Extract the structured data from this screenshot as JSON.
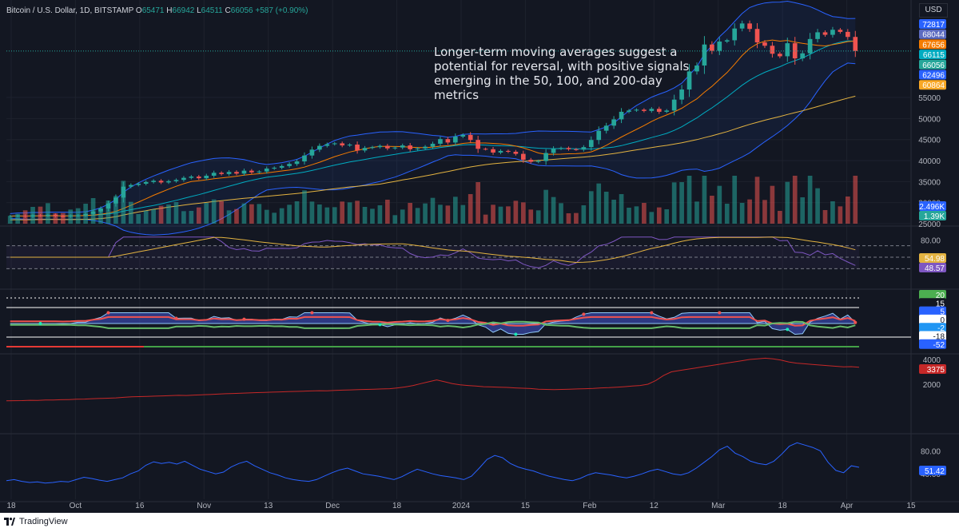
{
  "header": {
    "symbol": "Bitcoin / U.S. Dollar, 1D, BITSTAMP",
    "o_label": "O",
    "o_value": "65471",
    "h_label": "H",
    "h_value": "66942",
    "l_label": "L",
    "l_value": "64511",
    "c_label": "C",
    "c_value": "66056",
    "change": "+587 (+0.90%)",
    "currency": "USD"
  },
  "annotation": "Longer-term moving averages suggest a potential for reversal, with positive signals emerging in the 50, 100, and 200-day metrics",
  "footer": {
    "brand": "TradingView"
  },
  "colors": {
    "background": "#131722",
    "up": "#26a69a",
    "down": "#ef5350",
    "bollinger": "#2962ff",
    "ma_gold": "#e3b341",
    "rsi": "#7e57c2",
    "pane_line": "#2a2e39"
  },
  "chart_data": [
    {
      "type": "candlestick",
      "pane": "price",
      "x_ticks": [
        "18",
        "Oct",
        "16",
        "Nov",
        "13",
        "Dec",
        "18",
        "2024",
        "15",
        "Feb",
        "12",
        "Mar",
        "18",
        "Apr",
        "15"
      ],
      "y_ticks": [
        25000,
        30000,
        35000,
        40000,
        45000,
        50000,
        55000
      ],
      "ylim": [
        25000,
        74000
      ],
      "close_series": [
        26800,
        26900,
        26700,
        27000,
        26900,
        27100,
        26800,
        26700,
        26900,
        27000,
        27300,
        27900,
        28600,
        29800,
        31200,
        33800,
        34200,
        34500,
        34900,
        35200,
        34800,
        35100,
        35400,
        35900,
        36200,
        35800,
        36400,
        37100,
        36800,
        37300,
        36900,
        37600,
        37200,
        37400,
        38100,
        38300,
        38700,
        39200,
        39800,
        41200,
        42600,
        43500,
        43900,
        44100,
        43600,
        43800,
        42400,
        43000,
        43200,
        43500,
        42900,
        43100,
        43600,
        42700,
        42900,
        43300,
        44000,
        45100,
        44300,
        45700,
        46100,
        44900,
        42800,
        42700,
        41900,
        42300,
        42100,
        41600,
        40200,
        39700,
        39900,
        41800,
        42800,
        43000,
        42700,
        42600,
        43200,
        44900,
        47100,
        48300,
        49800,
        51600,
        51900,
        52100,
        51800,
        52300,
        51600,
        51900,
        54500,
        56900,
        61200,
        62600,
        67600,
        66100,
        68300,
        68600,
        71400,
        72600,
        71300,
        68100,
        67300,
        65400,
        64800,
        67900,
        64300,
        65500,
        68900,
        70500,
        69900,
        71100,
        70600,
        69400,
        66056
      ],
      "labels": [
        "72817",
        "68044",
        "67656",
        "66115",
        "66056",
        "62496",
        "60864"
      ],
      "label_colors": [
        "#2962ff",
        "#5c6bc0",
        "#f57c00",
        "#00acc1",
        "#26a69a",
        "#2962ff",
        "#f9a825"
      ]
    },
    {
      "type": "bar",
      "pane": "volume",
      "labels": [
        "2.496K",
        "1.39K"
      ],
      "label_colors": [
        "#2962ff",
        "#26a69a"
      ]
    },
    {
      "type": "line",
      "pane": "rsi",
      "y_ticks": [
        80.0
      ],
      "labels": [
        "54.98",
        "48.57"
      ],
      "label_colors": [
        "#e3b341",
        "#7e57c2"
      ]
    },
    {
      "type": "area",
      "pane": "oscillator",
      "labels": [
        "20",
        "15",
        "5",
        "0",
        "-2",
        "-18",
        "-52"
      ],
      "label_colors": [
        "#4caf50",
        "#131722",
        "#2962ff",
        "#ffffff",
        "#2196f3",
        "#ffffff",
        "#2962ff"
      ]
    },
    {
      "type": "line",
      "pane": "red-line",
      "y_ticks": [
        4000,
        2000
      ],
      "label": "3375",
      "label_color": "#c62828",
      "values": [
        660,
        670,
        680,
        700,
        690,
        720,
        730,
        750,
        760,
        790,
        800,
        830,
        850,
        870,
        900,
        940,
        980,
        1000,
        1020,
        1040,
        1060,
        1080,
        1100,
        1090,
        1120,
        1150,
        1170,
        1200,
        1230,
        1250,
        1270,
        1300,
        1320,
        1340,
        1360,
        1380,
        1400,
        1420,
        1440,
        1460,
        1480,
        1470,
        1500,
        1520,
        1540,
        1560,
        1580,
        1600,
        1620,
        1640,
        1700,
        1780,
        1900,
        2050,
        2200,
        2350,
        2200,
        2050,
        1950,
        1900,
        1850,
        1800,
        1780,
        1760,
        1740,
        1700,
        1680,
        1650,
        1600,
        1580,
        1560,
        1580,
        1600,
        1620,
        1640,
        1660,
        1700,
        1720,
        1760,
        1800,
        1850,
        1900,
        2000,
        2300,
        2700,
        3000,
        3100,
        3200,
        3300,
        3400,
        3500,
        3600,
        3700,
        3800,
        3900,
        4000,
        4050,
        4100,
        4050,
        3950,
        3800,
        3700,
        3650,
        3600,
        3550,
        3500,
        3450,
        3400,
        3420,
        3375
      ]
    },
    {
      "type": "line",
      "pane": "blue-line",
      "y_ticks": [
        80.0,
        40.0
      ],
      "label": "51.42",
      "label_color": "#2962ff",
      "values": [
        28,
        30,
        27,
        25,
        26,
        24,
        25,
        27,
        26,
        30,
        34,
        32,
        29,
        27,
        30,
        33,
        40,
        45,
        55,
        61,
        58,
        60,
        57,
        62,
        55,
        48,
        44,
        40,
        43,
        52,
        58,
        62,
        54,
        48,
        42,
        38,
        33,
        30,
        28,
        27,
        30,
        36,
        42,
        47,
        50,
        45,
        40,
        38,
        36,
        33,
        30,
        35,
        42,
        48,
        44,
        40,
        37,
        35,
        33,
        30,
        36,
        50,
        65,
        72,
        68,
        58,
        52,
        48,
        45,
        40,
        36,
        33,
        30,
        28,
        32,
        38,
        42,
        40,
        38,
        35,
        33,
        36,
        40,
        45,
        48,
        44,
        40,
        38,
        42,
        50,
        60,
        70,
        82,
        88,
        76,
        70,
        62,
        58,
        56,
        62,
        74,
        88,
        94,
        90,
        86,
        80,
        60,
        46,
        42,
        54,
        51.42
      ]
    }
  ]
}
